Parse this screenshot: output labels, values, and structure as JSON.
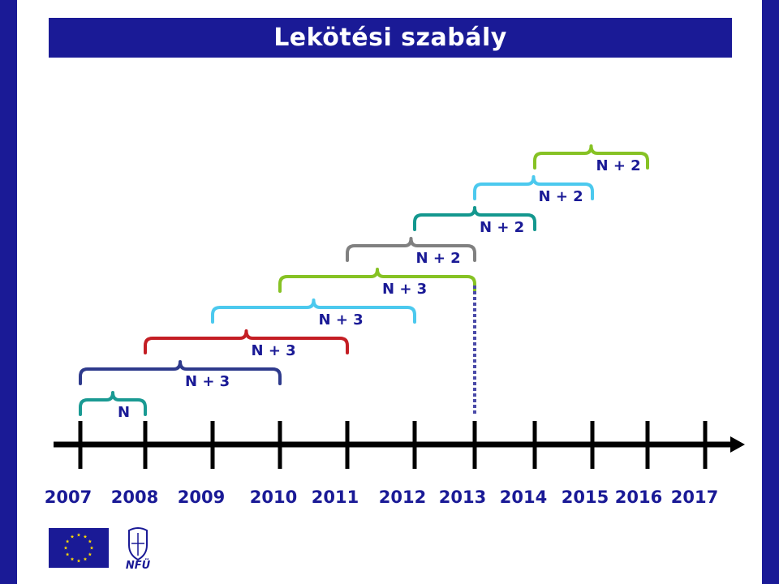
{
  "header": {
    "title": "Lekötési szabály"
  },
  "colors": {
    "frame": "#1a1a96",
    "timeline": "#000000",
    "years": "#1a1a96",
    "labels": "#1a1a96",
    "marker": "#4a4aa8"
  },
  "timeline": {
    "years": [
      "2007",
      "2008",
      "2009",
      "2010",
      "2011",
      "2012",
      "2013",
      "2014",
      "2015",
      "2016",
      "2017"
    ]
  },
  "braces": [
    {
      "label": "N",
      "start": 0,
      "end": 1,
      "level": 0,
      "color": "#1a9a93"
    },
    {
      "label": "N + 3",
      "start": 0,
      "end": 3,
      "level": 1,
      "color": "#2e3a8c"
    },
    {
      "label": "N + 3",
      "start": 1,
      "end": 4,
      "level": 2,
      "color": "#c41e24"
    },
    {
      "label": "N + 3",
      "start": 2,
      "end": 5,
      "level": 3,
      "color": "#4cc9ee"
    },
    {
      "label": "N + 3",
      "start": 3,
      "end": 6,
      "level": 4,
      "color": "#86c224"
    },
    {
      "label": "N + 2",
      "start": 4,
      "end": 6,
      "level": 5,
      "color": "#808080"
    },
    {
      "label": "N + 2",
      "start": 5,
      "end": 7,
      "level": 6,
      "color": "#13978e"
    },
    {
      "label": "N + 2",
      "start": 6,
      "end": 8,
      "level": 7,
      "color": "#4cc9ee"
    },
    {
      "label": "N + 2",
      "start": 7,
      "end": 9,
      "level": 8,
      "color": "#86c224"
    }
  ],
  "marker_tick": 6,
  "logos": [
    {
      "icon": "eu-flag-icon"
    },
    {
      "icon": "nfu-crest-icon",
      "text": "NFÜ"
    }
  ]
}
